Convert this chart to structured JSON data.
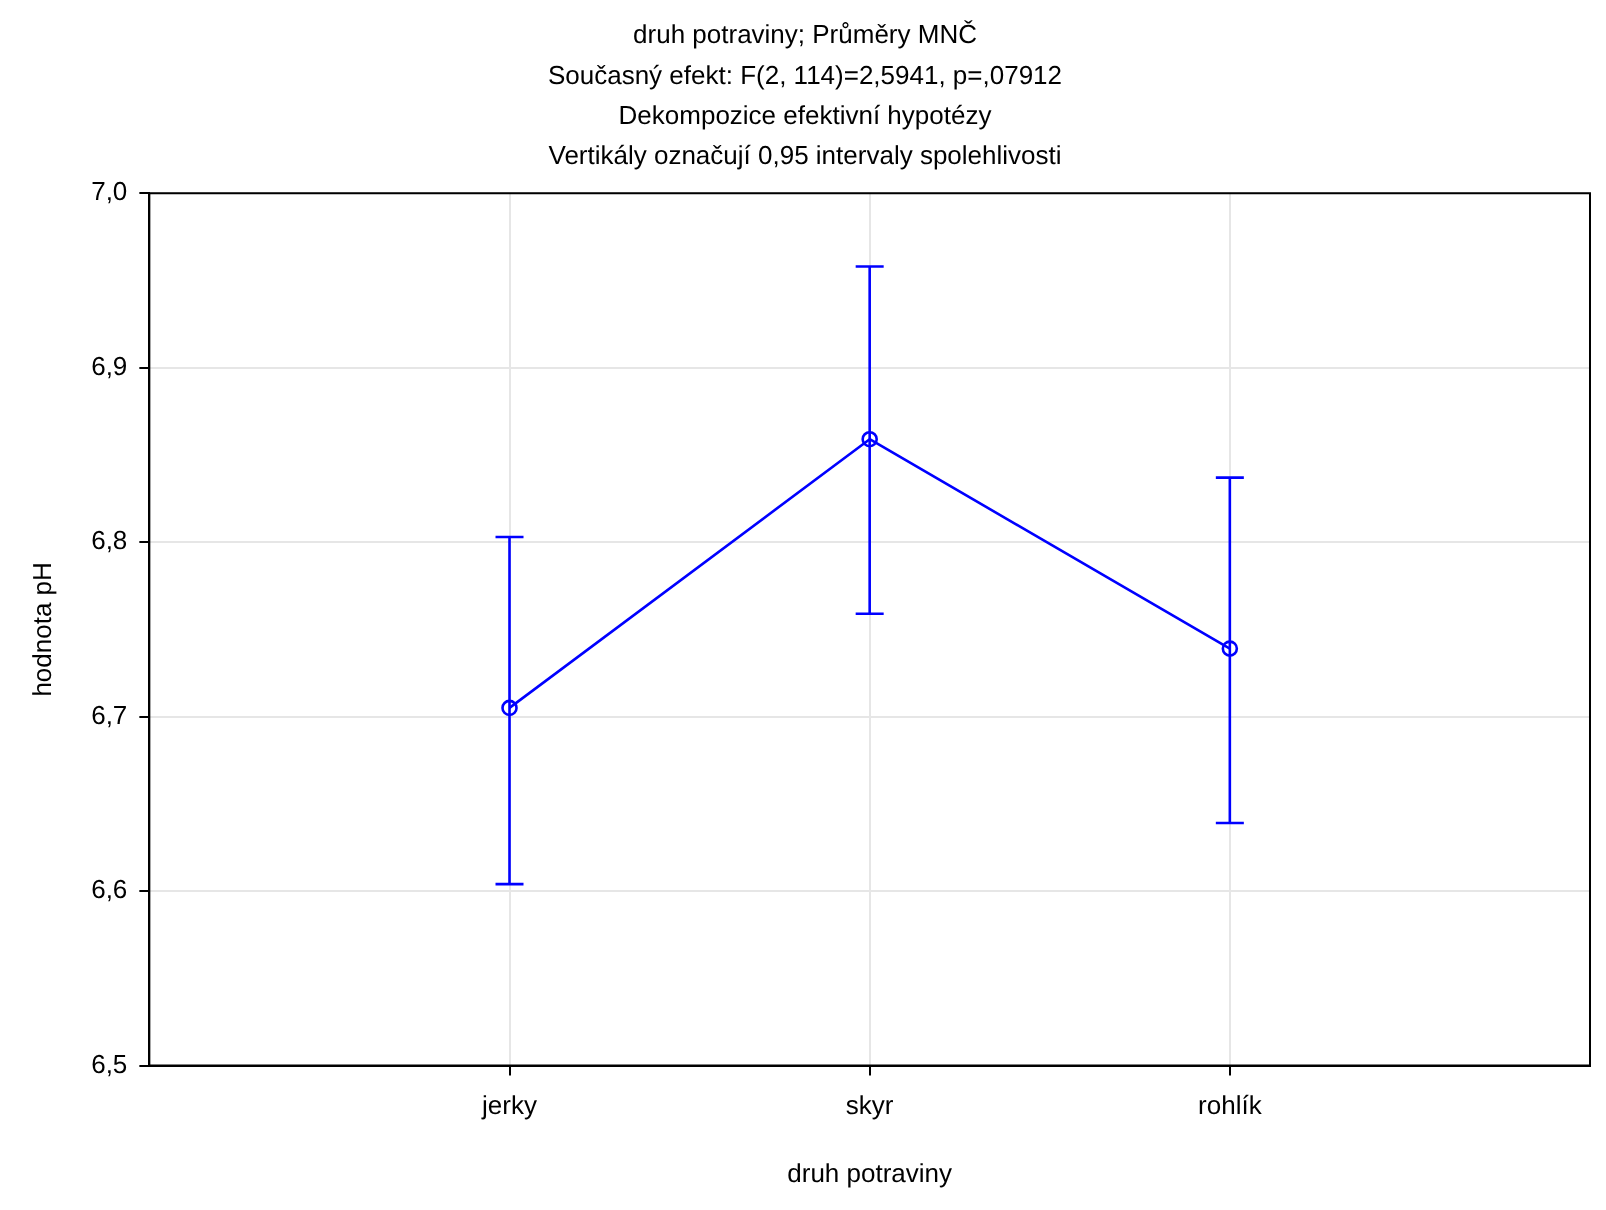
{
  "chart_data": {
    "type": "line",
    "title": "druh potraviny; Průměry MNČ",
    "subtitle": "Současný efekt: F(2, 114)=2,5941, p=,07912",
    "annotations": [
      "Dekompozice efektivní hypotézy",
      "Vertikály označují 0,95 intervaly spolehlivosti"
    ],
    "xlabel": "druh potraviny",
    "ylabel": "hodnota pH",
    "categories": [
      "jerky",
      "skyr",
      "rohlík"
    ],
    "series": [
      {
        "color": "#0000ff",
        "values": [
          6.705,
          6.859,
          6.739
        ],
        "errors": [
          [
            6.604,
            6.803
          ],
          [
            6.759,
            6.958
          ],
          [
            6.639,
            6.837
          ]
        ]
      }
    ],
    "ylim": [
      6.5,
      7.0
    ],
    "yticks": [
      {
        "value": 6.5,
        "label": "6,5"
      },
      {
        "value": 6.6,
        "label": "6,6"
      },
      {
        "value": 6.7,
        "label": "6,7"
      },
      {
        "value": 6.8,
        "label": "6,8"
      },
      {
        "value": 6.9,
        "label": "6,9"
      },
      {
        "value": 7.0,
        "label": "7,0"
      }
    ],
    "grid": true,
    "marker": "circle",
    "line_style": "solid"
  }
}
